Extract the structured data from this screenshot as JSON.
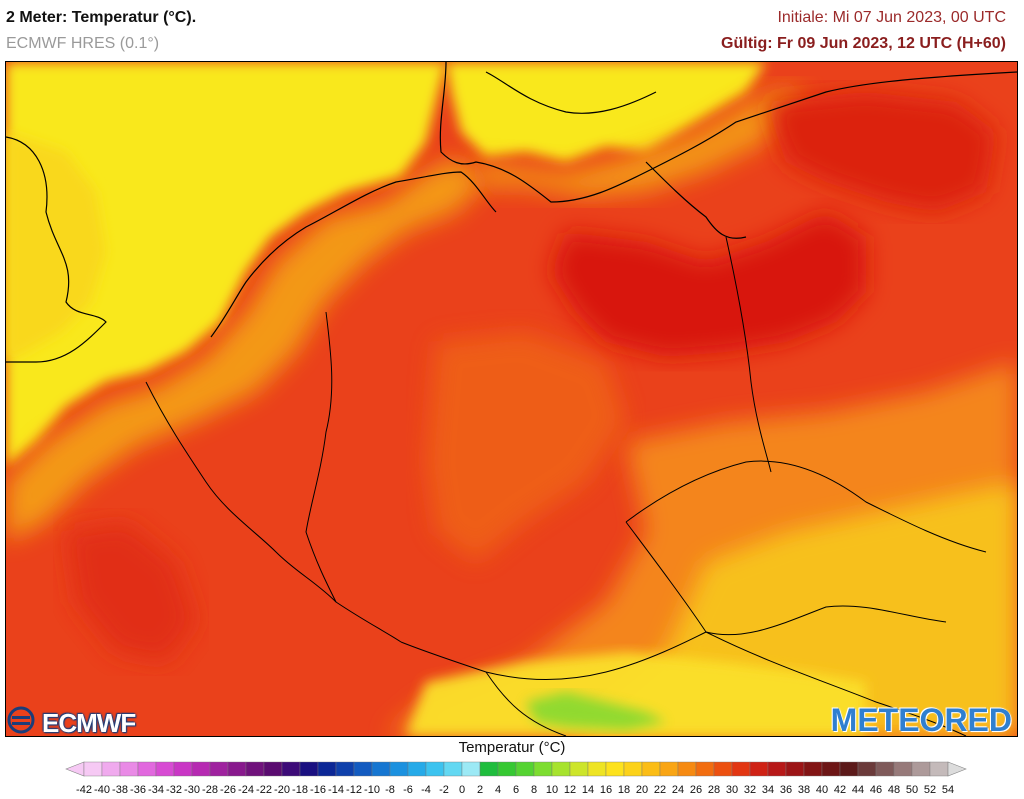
{
  "header": {
    "title": "2 Meter: Temperatur (°C).",
    "subtitle": "ECMWF HRES (0.1°)",
    "initial": "Initiale: Mi 07 Jun 2023, 00 UTC",
    "valid": "Gültig: Fr 09 Jun 2023, 12 UTC (H+60)"
  },
  "logos": {
    "ecmwf": "ECMWF",
    "meteored": "METEORED"
  },
  "legend": {
    "title": "Temperatur (°C)",
    "ticks": [
      "-42",
      "-40",
      "-38",
      "-36",
      "-34",
      "-32",
      "-30",
      "-28",
      "-26",
      "-24",
      "-22",
      "-20",
      "-18",
      "-16",
      "-14",
      "-12",
      "-10",
      "-8",
      "-6",
      "-4",
      "-2",
      "0",
      "2",
      "4",
      "6",
      "8",
      "10",
      "12",
      "14",
      "16",
      "18",
      "20",
      "22",
      "24",
      "26",
      "28",
      "30",
      "32",
      "34",
      "36",
      "38",
      "40",
      "42",
      "44",
      "46",
      "48",
      "50",
      "52",
      "54"
    ],
    "colors": [
      "#f6c9f4",
      "#f0aaee",
      "#e98ae6",
      "#e168de",
      "#d74bd3",
      "#c936c5",
      "#b62ab2",
      "#9f229f",
      "#88198d",
      "#70127c",
      "#5a0b70",
      "#3d0b78",
      "#1a1081",
      "#0c2796",
      "#0f40ab",
      "#135bc0",
      "#1676d1",
      "#1c91df",
      "#26aae8",
      "#3cc3ef",
      "#63d8f2",
      "#9ce9f5",
      "#1fbd3d",
      "#36c832",
      "#55d332",
      "#7ddd30",
      "#a7e32e",
      "#cde52b",
      "#eee424",
      "#fde21d",
      "#fcd21a",
      "#fbbd16",
      "#f9a514",
      "#f68a12",
      "#f26d10",
      "#ec5010",
      "#e23612",
      "#cf2215",
      "#b71818",
      "#9c1416",
      "#821414",
      "#6d1616",
      "#5c1a1a",
      "#6b3a3a",
      "#7f5a5a",
      "#977a7a",
      "#ad9a9a",
      "#c4baba",
      "#dcdcdc"
    ]
  }
}
